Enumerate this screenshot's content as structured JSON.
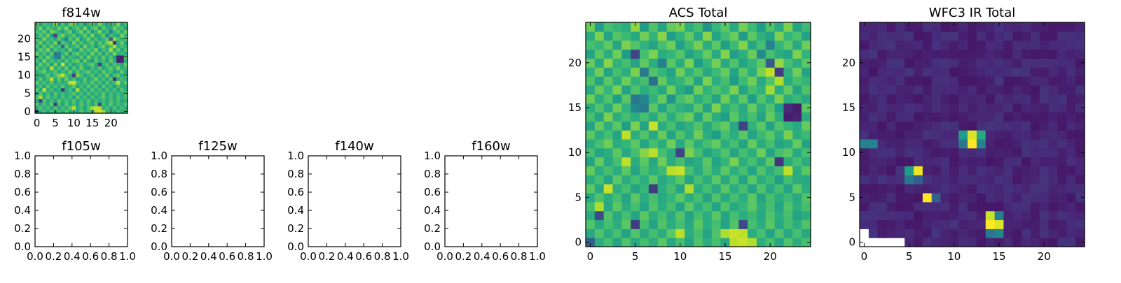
{
  "figure": {
    "panels": [
      {
        "title": "f814w",
        "kind": "image",
        "source": "acs"
      },
      {
        "title": "f105w",
        "kind": "empty"
      },
      {
        "title": "f125w",
        "kind": "empty"
      },
      {
        "title": "f140w",
        "kind": "empty"
      },
      {
        "title": "f160w",
        "kind": "empty"
      },
      {
        "title": "ACS Total",
        "kind": "image",
        "source": "acs"
      },
      {
        "title": "WFC3 IR Total",
        "kind": "image",
        "source": "wfc3"
      }
    ]
  },
  "chart_data": [
    {
      "type": "heatmap",
      "title": "f814w",
      "grid_size": [
        25,
        25
      ],
      "x_ticks": [
        0,
        5,
        10,
        15,
        20
      ],
      "y_ticks": [
        0,
        5,
        10,
        15,
        20
      ],
      "colormap": "viridis",
      "values_ref": "ACS Total"
    },
    {
      "type": "heatmap",
      "title": "f105w",
      "x_ticks": [
        "0.0",
        "0.2",
        "0.4",
        "0.6",
        "0.8",
        "1.0"
      ],
      "y_ticks": [
        "0.0",
        "0.2",
        "0.4",
        "0.6",
        "0.8",
        "1.0"
      ],
      "xlim": [
        0,
        1
      ],
      "ylim": [
        0,
        1
      ],
      "empty": true
    },
    {
      "type": "heatmap",
      "title": "f125w",
      "x_ticks": [
        "0.0",
        "0.2",
        "0.4",
        "0.6",
        "0.8",
        "1.0"
      ],
      "y_ticks": [
        "0.0",
        "0.2",
        "0.4",
        "0.6",
        "0.8",
        "1.0"
      ],
      "xlim": [
        0,
        1
      ],
      "ylim": [
        0,
        1
      ],
      "empty": true
    },
    {
      "type": "heatmap",
      "title": "f140w",
      "x_ticks": [
        "0.0",
        "0.2",
        "0.4",
        "0.6",
        "0.8",
        "1.0"
      ],
      "y_ticks": [
        "0.0",
        "0.2",
        "0.4",
        "0.6",
        "0.8",
        "1.0"
      ],
      "xlim": [
        0,
        1
      ],
      "ylim": [
        0,
        1
      ],
      "empty": true
    },
    {
      "type": "heatmap",
      "title": "f160w",
      "x_ticks": [
        "0.0",
        "0.2",
        "0.4",
        "0.6",
        "0.8",
        "1.0"
      ],
      "y_ticks": [
        "0.0",
        "0.2",
        "0.4",
        "0.6",
        "0.8",
        "1.0"
      ],
      "xlim": [
        0,
        1
      ],
      "ylim": [
        0,
        1
      ],
      "empty": true
    },
    {
      "type": "heatmap",
      "title": "ACS Total",
      "grid_size": [
        25,
        25
      ],
      "x_ticks": [
        0,
        5,
        10,
        15,
        20
      ],
      "y_ticks": [
        0,
        5,
        10,
        15,
        20
      ],
      "colormap": "viridis",
      "value_range": [
        0,
        1
      ],
      "values_note": "rows listed from y=24 (top) to y=0 (bottom); values 0-1 normalized intensity",
      "values": [
        [
          0.78,
          0.55,
          0.7,
          0.66,
          0.62,
          0.83,
          0.55,
          0.72,
          0.58,
          0.76,
          0.8,
          0.62,
          0.7,
          0.51,
          0.66,
          0.74,
          0.6,
          0.79,
          0.68,
          0.55,
          0.72,
          0.61,
          0.8,
          0.58,
          0.68
        ],
        [
          0.62,
          0.8,
          0.58,
          0.73,
          0.68,
          0.6,
          0.78,
          0.65,
          0.82,
          0.55,
          0.64,
          0.75,
          0.6,
          0.82,
          0.58,
          0.69,
          0.77,
          0.55,
          0.74,
          0.63,
          0.58,
          0.8,
          0.66,
          0.71,
          0.57
        ],
        [
          0.7,
          0.66,
          0.75,
          0.59,
          0.8,
          0.72,
          0.64,
          0.58,
          0.7,
          0.78,
          0.57,
          0.68,
          0.79,
          0.62,
          0.74,
          0.56,
          0.68,
          0.81,
          0.59,
          0.7,
          0.45,
          0.66,
          0.74,
          0.6,
          0.78
        ],
        [
          0.58,
          0.74,
          0.62,
          0.78,
          0.55,
          0.2,
          0.7,
          0.8,
          0.62,
          0.66,
          0.73,
          0.58,
          0.65,
          0.76,
          0.6,
          0.81,
          0.57,
          0.63,
          0.77,
          0.48,
          0.7,
          0.62,
          0.58,
          0.8,
          0.65
        ],
        [
          0.76,
          0.6,
          0.82,
          0.64,
          0.7,
          0.58,
          0.75,
          0.62,
          0.45,
          0.74,
          0.62,
          0.8,
          0.56,
          0.66,
          0.79,
          0.6,
          0.72,
          0.58,
          0.66,
          0.74,
          0.28,
          0.84,
          0.7,
          0.62,
          0.74
        ],
        [
          0.64,
          0.78,
          0.58,
          0.7,
          0.62,
          0.8,
          0.4,
          0.72,
          0.66,
          0.58,
          0.78,
          0.64,
          0.72,
          0.6,
          0.68,
          0.76,
          0.58,
          0.74,
          0.62,
          0.8,
          0.9,
          0.18,
          0.64,
          0.78,
          0.58
        ],
        [
          0.72,
          0.58,
          0.74,
          0.62,
          0.78,
          0.64,
          0.7,
          0.36,
          0.76,
          0.62,
          0.66,
          0.74,
          0.58,
          0.8,
          0.62,
          0.7,
          0.55,
          0.68,
          0.78,
          0.6,
          0.72,
          0.88,
          0.62,
          0.7,
          0.66
        ],
        [
          0.6,
          0.76,
          0.66,
          0.8,
          0.58,
          0.72,
          0.62,
          0.68,
          0.6,
          0.78,
          0.62,
          0.55,
          0.78,
          0.65,
          0.72,
          0.66,
          0.8,
          0.58,
          0.7,
          0.64,
          0.86,
          0.62,
          0.76,
          0.58,
          0.72
        ],
        [
          0.78,
          0.62,
          0.72,
          0.56,
          0.74,
          0.4,
          0.46,
          0.64,
          0.76,
          0.52,
          0.7,
          0.76,
          0.62,
          0.7,
          0.58,
          0.78,
          0.62,
          0.74,
          0.56,
          0.72,
          0.62,
          0.8,
          0.62,
          0.68,
          0.6
        ],
        [
          0.62,
          0.72,
          0.6,
          0.78,
          0.64,
          0.46,
          0.42,
          0.74,
          0.58,
          0.7,
          0.64,
          0.6,
          0.74,
          0.58,
          0.8,
          0.62,
          0.7,
          0.6,
          0.76,
          0.62,
          0.72,
          0.56,
          0.12,
          0.08,
          0.74
        ],
        [
          0.7,
          0.58,
          0.8,
          0.62,
          0.7,
          0.62,
          0.7,
          0.6,
          0.74,
          0.62,
          0.72,
          0.78,
          0.58,
          0.76,
          0.62,
          0.56,
          0.74,
          0.62,
          0.7,
          0.58,
          0.76,
          0.62,
          0.08,
          0.1,
          0.62
        ],
        [
          0.58,
          0.76,
          0.62,
          0.74,
          0.56,
          0.8,
          0.58,
          0.92,
          0.62,
          0.7,
          0.58,
          0.64,
          0.72,
          0.6,
          0.7,
          0.76,
          0.6,
          0.2,
          0.64,
          0.74,
          0.58,
          0.72,
          0.66,
          0.6,
          0.76
        ],
        [
          0.74,
          0.62,
          0.7,
          0.58,
          0.9,
          0.62,
          0.72,
          0.6,
          0.76,
          0.58,
          0.72,
          0.62,
          0.78,
          0.62,
          0.56,
          0.7,
          0.62,
          0.74,
          0.58,
          0.68,
          0.74,
          0.62,
          0.8,
          0.62,
          0.68
        ],
        [
          0.62,
          0.7,
          0.78,
          0.62,
          0.66,
          0.74,
          0.58,
          0.7,
          0.62,
          0.78,
          0.6,
          0.74,
          0.62,
          0.7,
          0.76,
          0.62,
          0.7,
          0.58,
          0.76,
          0.62,
          0.7,
          0.58,
          0.62,
          0.76,
          0.58
        ],
        [
          0.7,
          0.58,
          0.62,
          0.74,
          0.6,
          0.7,
          0.82,
          0.9,
          0.7,
          0.62,
          0.2,
          0.8,
          0.7,
          0.58,
          0.64,
          0.72,
          0.58,
          0.7,
          0.62,
          0.78,
          0.58,
          0.7,
          0.74,
          0.6,
          0.7
        ],
        [
          0.58,
          0.76,
          0.6,
          0.7,
          0.9,
          0.62,
          0.74,
          0.6,
          0.78,
          0.62,
          0.7,
          0.58,
          0.62,
          0.74,
          0.58,
          0.66,
          0.8,
          0.62,
          0.7,
          0.6,
          0.74,
          0.15,
          0.62,
          0.7,
          0.62
        ],
        [
          0.76,
          0.62,
          0.7,
          0.62,
          0.74,
          0.58,
          0.7,
          0.62,
          0.68,
          0.9,
          0.92,
          0.7,
          0.6,
          0.72,
          0.62,
          0.74,
          0.62,
          0.7,
          0.58,
          0.72,
          0.62,
          0.7,
          0.9,
          0.62,
          0.74
        ],
        [
          0.62,
          0.7,
          0.58,
          0.74,
          0.62,
          0.7,
          0.62,
          0.74,
          0.6,
          0.66,
          0.74,
          0.58,
          0.7,
          0.62,
          0.74,
          0.6,
          0.72,
          0.58,
          0.74,
          0.62,
          0.68,
          0.56,
          0.7,
          0.62,
          0.6
        ],
        [
          0.74,
          0.6,
          0.92,
          0.62,
          0.7,
          0.58,
          0.66,
          0.18,
          0.62,
          0.7,
          0.58,
          0.88,
          0.62,
          0.7,
          0.6,
          0.74,
          0.62,
          0.7,
          0.58,
          0.72,
          0.6,
          0.7,
          0.58,
          0.74,
          0.62
        ],
        [
          0.6,
          0.72,
          0.62,
          0.7,
          0.58,
          0.74,
          0.62,
          0.7,
          0.6,
          0.66,
          0.74,
          0.62,
          0.7,
          0.58,
          0.72,
          0.6,
          0.7,
          0.62,
          0.74,
          0.58,
          0.7,
          0.62,
          0.68,
          0.6,
          0.72
        ],
        [
          0.7,
          0.88,
          0.6,
          0.74,
          0.62,
          0.7,
          0.58,
          0.72,
          0.62,
          0.7,
          0.58,
          0.74,
          0.62,
          0.7,
          0.58,
          0.72,
          0.6,
          0.66,
          0.74,
          0.62,
          0.7,
          0.58,
          0.72,
          0.62,
          0.7
        ],
        [
          0.62,
          0.22,
          0.72,
          0.6,
          0.7,
          0.58,
          0.74,
          0.62,
          0.7,
          0.6,
          0.72,
          0.58,
          0.7,
          0.62,
          0.74,
          0.58,
          0.7,
          0.62,
          0.68,
          0.6,
          0.72,
          0.62,
          0.7,
          0.58,
          0.62
        ],
        [
          0.72,
          0.6,
          0.7,
          0.62,
          0.74,
          0.18,
          0.7,
          0.58,
          0.72,
          0.62,
          0.7,
          0.6,
          0.74,
          0.62,
          0.7,
          0.58,
          0.72,
          0.22,
          0.7,
          0.62,
          0.74,
          0.6,
          0.7,
          0.62,
          0.72
        ],
        [
          0.6,
          0.72,
          0.62,
          0.7,
          0.58,
          0.72,
          0.6,
          0.7,
          0.62,
          0.74,
          0.9,
          0.62,
          0.7,
          0.58,
          0.72,
          0.88,
          0.92,
          0.9,
          0.62,
          0.7,
          0.58,
          0.72,
          0.6,
          0.7,
          0.6
        ],
        [
          0.3,
          0.62,
          0.7,
          0.58,
          0.72,
          0.6,
          0.7,
          0.62,
          0.74,
          0.6,
          0.7,
          0.58,
          0.72,
          0.62,
          0.7,
          0.6,
          0.9,
          0.92,
          0.88,
          0.62,
          0.7,
          0.58,
          0.72,
          0.62,
          0.7
        ]
      ]
    },
    {
      "type": "heatmap",
      "title": "WFC3 IR Total",
      "grid_size": [
        25,
        25
      ],
      "x_ticks": [
        0,
        5,
        10,
        15,
        20
      ],
      "y_ticks": [
        0,
        5,
        10,
        15,
        20
      ],
      "colormap": "viridis",
      "value_range": [
        0,
        1
      ],
      "background_level": 0.06,
      "masked_blank_cells": [
        [
          0,
          1
        ],
        [
          0,
          0
        ],
        [
          1,
          0
        ],
        [
          2,
          0
        ],
        [
          3,
          0
        ],
        [
          4,
          0
        ]
      ],
      "sources": [
        {
          "x": 0,
          "y": 11,
          "value": 0.45
        },
        {
          "x": 1,
          "y": 11,
          "value": 0.45
        },
        {
          "x": 11,
          "y": 12,
          "value": 0.55
        },
        {
          "x": 12,
          "y": 12,
          "value": 0.95
        },
        {
          "x": 13,
          "y": 12,
          "value": 0.6
        },
        {
          "x": 11,
          "y": 11,
          "value": 0.4
        },
        {
          "x": 12,
          "y": 11,
          "value": 1.0
        },
        {
          "x": 13,
          "y": 11,
          "value": 0.45
        },
        {
          "x": 5,
          "y": 8,
          "value": 0.55
        },
        {
          "x": 6,
          "y": 8,
          "value": 0.98
        },
        {
          "x": 5,
          "y": 7,
          "value": 0.4
        },
        {
          "x": 6,
          "y": 7,
          "value": 0.3
        },
        {
          "x": 7,
          "y": 5,
          "value": 1.0
        },
        {
          "x": 8,
          "y": 5,
          "value": 0.3
        },
        {
          "x": 14,
          "y": 3,
          "value": 0.92
        },
        {
          "x": 15,
          "y": 3,
          "value": 0.45
        },
        {
          "x": 14,
          "y": 2,
          "value": 1.0
        },
        {
          "x": 15,
          "y": 2,
          "value": 0.95
        },
        {
          "x": 14,
          "y": 1,
          "value": 0.4
        },
        {
          "x": 15,
          "y": 1,
          "value": 0.45
        }
      ]
    }
  ]
}
